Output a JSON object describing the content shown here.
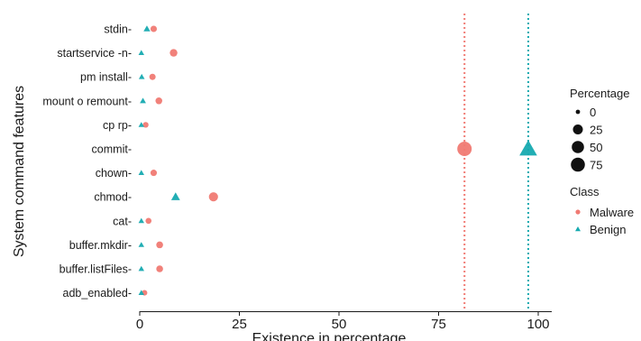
{
  "chart_data": {
    "type": "scatter",
    "title": "",
    "xlabel": "Existence in percentage",
    "ylabel": "System command features",
    "xlim": [
      0,
      100
    ],
    "x_ticks": [
      0,
      25,
      50,
      75,
      100
    ],
    "grid": false,
    "categories": [
      "stdin-",
      "startservice -n-",
      "pm install-",
      "mount o remount-",
      "cp rp-",
      "commit-",
      "chown-",
      "chmod-",
      "cat-",
      "buffer.mkdir-",
      "buffer.listFiles-",
      "adb_enabled-"
    ],
    "series": [
      {
        "name": "Malware",
        "color": "#f07a73",
        "marker": "circle",
        "values": [
          3.5,
          8.5,
          3.2,
          4.8,
          1.5,
          81.5,
          3.5,
          18.5,
          2.2,
          5.0,
          5.0,
          1.2
        ]
      },
      {
        "name": "Benign",
        "color": "#16aab0",
        "marker": "triangle",
        "values": [
          1.8,
          0.4,
          0.5,
          0.8,
          0.4,
          97.5,
          0.4,
          9.0,
          0.4,
          0.4,
          0.4,
          0.4
        ]
      }
    ],
    "reference_lines": [
      {
        "x": 81.5,
        "color": "#f07a73",
        "style": "dotted"
      },
      {
        "x": 97.5,
        "color": "#16aab0",
        "style": "dotted"
      }
    ],
    "size_legend": {
      "title": "Percentage",
      "entries": [
        "0",
        "25",
        "50",
        "75"
      ]
    },
    "color_legend": {
      "title": "Class",
      "entries": [
        "Malware",
        "Benign"
      ]
    },
    "legend_position": "right"
  }
}
